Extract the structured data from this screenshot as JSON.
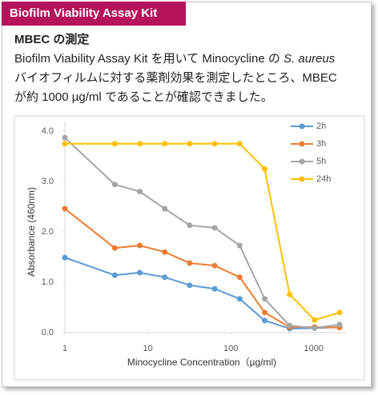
{
  "header": {
    "title": "Biofilm Viability Assay Kit"
  },
  "section": {
    "heading": "MBEC の測定",
    "line1": "Biofilm Viability Assay Kit を用いて Minocycline の ",
    "line1_italic": "S. aureus",
    "line2": "バイオフィルムに対する薬剤効果を測定したところ、MBEC",
    "line3": "が約 1000 µg/ml であることが確認できました。"
  },
  "chart_data": {
    "type": "line",
    "x_label": "Minocycline Concentration（µg/ml)",
    "y_label": "Absorbance (460nm)",
    "x": [
      1,
      4,
      8,
      16,
      32,
      64,
      128,
      256,
      512,
      1024,
      2048
    ],
    "xlim": [
      1,
      2500
    ],
    "xticks": [
      1,
      10,
      100,
      1000
    ],
    "log_x": true,
    "ylim": [
      0,
      4
    ],
    "yticks": [
      {
        "value": 0,
        "label": "0.0"
      },
      {
        "value": 1,
        "label": "1.0"
      },
      {
        "value": 2,
        "label": "2.0"
      },
      {
        "value": 3,
        "label": "3.0"
      },
      {
        "value": 4,
        "label": "4.0"
      }
    ],
    "legend": "upper right",
    "series": [
      {
        "name": "2h",
        "color": "#5b9bd5",
        "values": [
          1.49,
          1.14,
          1.19,
          1.1,
          0.94,
          0.87,
          0.67,
          0.24,
          0.08,
          0.09,
          0.11
        ]
      },
      {
        "name": "3h",
        "color": "#ed7d31",
        "values": [
          2.46,
          1.68,
          1.73,
          1.6,
          1.38,
          1.33,
          1.1,
          0.4,
          0.11,
          0.11,
          0.1
        ]
      },
      {
        "name": "5h",
        "color": "#a5a5a5",
        "values": [
          3.87,
          2.94,
          2.8,
          2.46,
          2.13,
          2.08,
          1.73,
          0.67,
          0.14,
          0.09,
          0.16
        ]
      },
      {
        "name": "24h",
        "color": "#ffc000",
        "values": [
          3.75,
          3.75,
          3.75,
          3.75,
          3.75,
          3.75,
          3.75,
          3.25,
          0.76,
          0.25,
          0.4
        ]
      }
    ]
  }
}
